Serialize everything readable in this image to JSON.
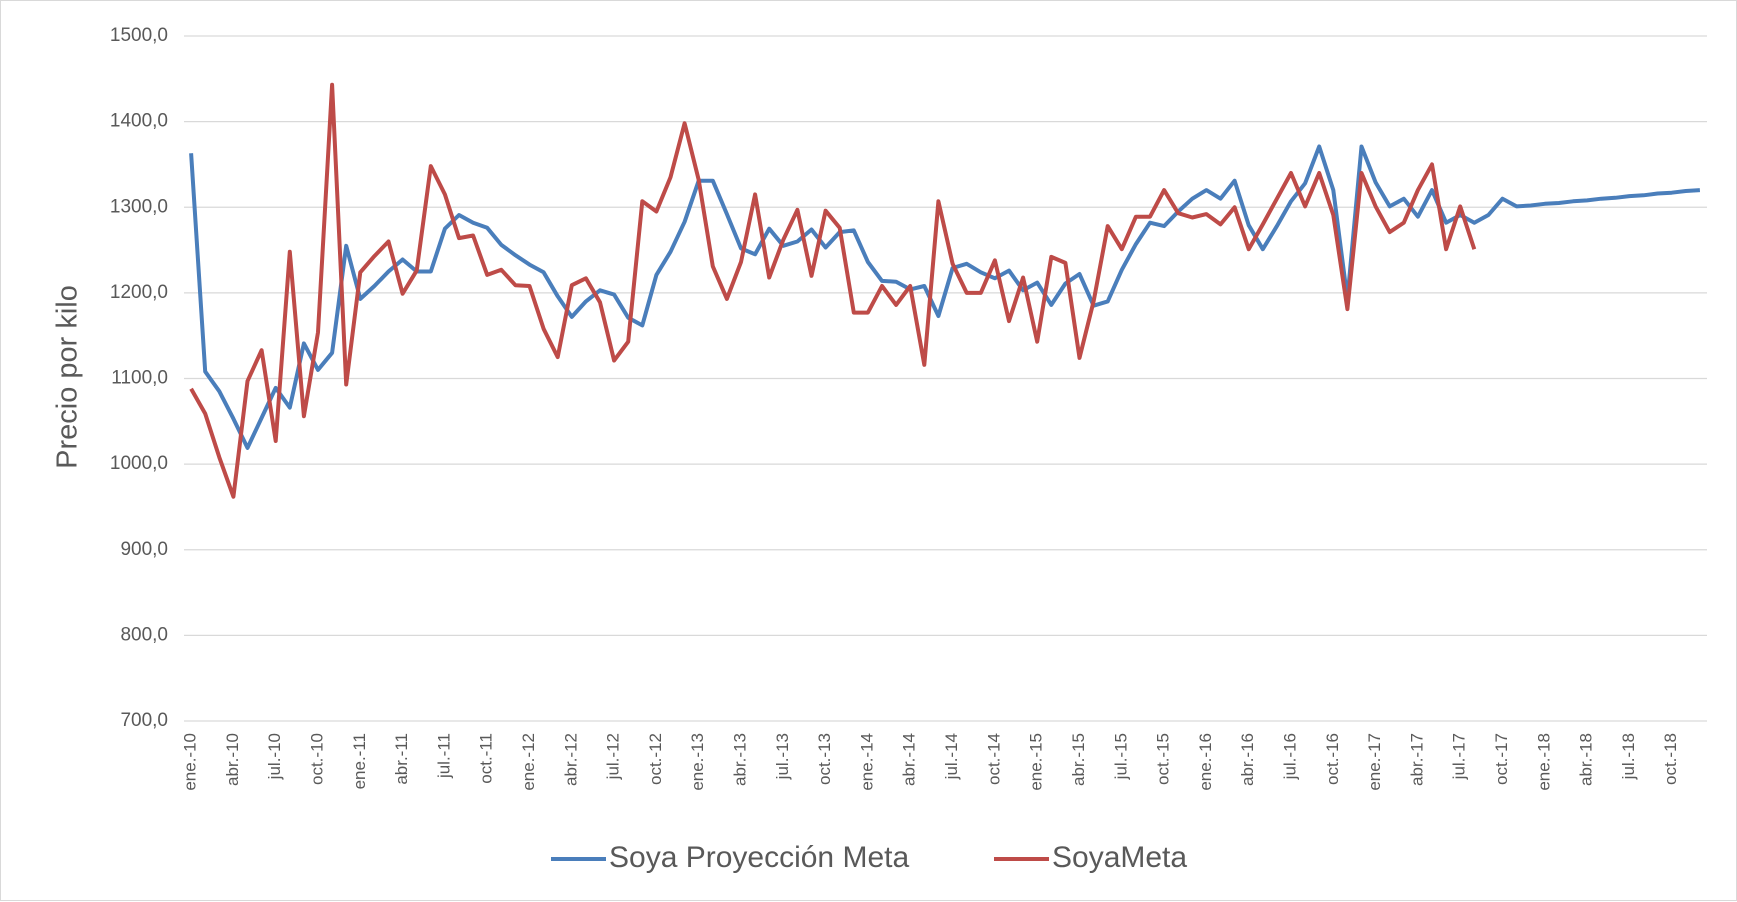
{
  "chart_data": {
    "type": "line",
    "y_label": "Precio por kilo",
    "categories": [
      "ene.-10",
      null,
      null,
      "abr.-10",
      null,
      null,
      "jul.-10",
      null,
      null,
      "oct.-10",
      null,
      null,
      "ene.-11",
      null,
      null,
      "abr.-11",
      null,
      null,
      "jul.-11",
      null,
      null,
      "oct.-11",
      null,
      null,
      "ene.-12",
      null,
      null,
      "abr.-12",
      null,
      null,
      "jul.-12",
      null,
      null,
      "oct.-12",
      null,
      null,
      "ene.-13",
      null,
      null,
      "abr.-13",
      null,
      null,
      "jul.-13",
      null,
      null,
      "oct.-13",
      null,
      null,
      "ene.-14",
      null,
      null,
      "abr.-14",
      null,
      null,
      "jul.-14",
      null,
      null,
      "oct.-14",
      null,
      null,
      "ene.-15",
      null,
      null,
      "abr.-15",
      null,
      null,
      "jul.-15",
      null,
      null,
      "oct.-15",
      null,
      null,
      "ene.-16",
      null,
      null,
      "abr.-16",
      null,
      null,
      "jul.-16",
      null,
      null,
      "oct.-16",
      null,
      null,
      "ene.-17",
      null,
      null,
      "abr.-17",
      null,
      null,
      "jul.-17",
      null,
      null,
      "oct.-17",
      null,
      null,
      "ene.-18",
      null,
      null,
      "abr.-18",
      null,
      null,
      "jul.-18",
      null,
      null,
      "oct.-18",
      null,
      null
    ],
    "series": [
      {
        "name": "Soya Proyección Meta",
        "color": "#4a7ebb",
        "values": [
          1363,
          1108,
          1085,
          1053,
          1019,
          1054,
          1089,
          1066,
          1141,
          1110,
          1130,
          1255,
          1193,
          1208,
          1225,
          1239,
          1225,
          1225,
          1275,
          1291,
          1282,
          1276,
          1256,
          1244,
          1233,
          1224,
          1196,
          1172,
          1190,
          1203,
          1198,
          1171,
          1162,
          1221,
          1248,
          1283,
          1331,
          1331,
          1292,
          1252,
          1245,
          1275,
          1255,
          1260,
          1274,
          1253,
          1271,
          1273,
          1236,
          1214,
          1213,
          1204,
          1208,
          1173,
          1229,
          1234,
          1224,
          1217,
          1226,
          1203,
          1212,
          1186,
          1211,
          1222,
          1185,
          1190,
          1227,
          1257,
          1282,
          1278,
          1295,
          1310,
          1320,
          1310,
          1331,
          1279,
          1251,
          1278,
          1307,
          1328,
          1371,
          1320,
          1193,
          1371,
          1329,
          1301,
          1310,
          1289,
          1320,
          1282,
          1291,
          1282,
          1291,
          1310,
          1301,
          1302,
          1304,
          1305,
          1307,
          1308,
          1310,
          1311,
          1313,
          1314,
          1316,
          1317,
          1319,
          1320
        ]
      },
      {
        "name": "SoyaMeta",
        "color": "#be4b48",
        "values": [
          1088,
          1059,
          1008,
          962,
          1097,
          1133,
          1027,
          1248,
          1056,
          1154,
          1443,
          1093,
          1224,
          1243,
          1260,
          1199,
          1226,
          1348,
          1315,
          1264,
          1267,
          1221,
          1227,
          1209,
          1208,
          1158,
          1125,
          1209,
          1217,
          1189,
          1121,
          1143,
          1307,
          1295,
          1335,
          1398,
          1332,
          1231,
          1193,
          1236,
          1315,
          1218,
          1262,
          1297,
          1220,
          1296,
          1276,
          1177,
          1177,
          1208,
          1186,
          1208,
          1116,
          1307,
          1234,
          1200,
          1200,
          1238,
          1167,
          1218,
          1143,
          1242,
          1235,
          1124,
          1190,
          1278,
          1251,
          1289,
          1289,
          1320,
          1293,
          1288,
          1292,
          1280,
          1300,
          1251,
          1280,
          1310,
          1340,
          1301,
          1340,
          1291,
          1181,
          1340,
          1301,
          1271,
          1282,
          1320,
          1350,
          1251,
          1301,
          1251,
          null,
          null,
          null,
          null,
          null,
          null,
          null,
          null,
          null,
          null,
          null,
          null,
          null,
          null,
          null,
          null
        ]
      }
    ],
    "ylim": [
      700,
      1500
    ],
    "yticks": [
      {
        "value": 700,
        "label": "700,0"
      },
      {
        "value": 800,
        "label": "800,0"
      },
      {
        "value": 900,
        "label": "900,0"
      },
      {
        "value": 1000,
        "label": "1000,0"
      },
      {
        "value": 1100,
        "label": "1100,0"
      },
      {
        "value": 1200,
        "label": "1200,0"
      },
      {
        "value": 1300,
        "label": "1300,0"
      },
      {
        "value": 1400,
        "label": "1400,0"
      },
      {
        "value": 1500,
        "label": "1500,0"
      }
    ],
    "grid": true,
    "legend": "bottom"
  }
}
